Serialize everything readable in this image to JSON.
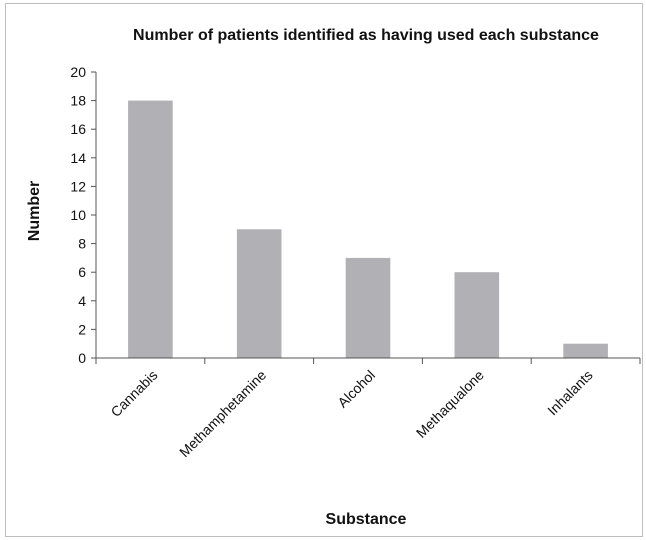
{
  "chart_data": {
    "type": "bar",
    "title": "Number of patients identified as having used each substance",
    "xlabel": "Substance",
    "ylabel": "Number",
    "categories": [
      "Cannabis",
      "Methamphetamine",
      "Alcohol",
      "Methaqualone",
      "Inhalants"
    ],
    "values": [
      18,
      9,
      7,
      6,
      1
    ],
    "ylim": [
      0,
      20
    ],
    "yticks": [
      0,
      2,
      4,
      6,
      8,
      10,
      12,
      14,
      16,
      18,
      20
    ],
    "grid": false,
    "legend": "none",
    "bar_color": "#b0b0b5"
  }
}
